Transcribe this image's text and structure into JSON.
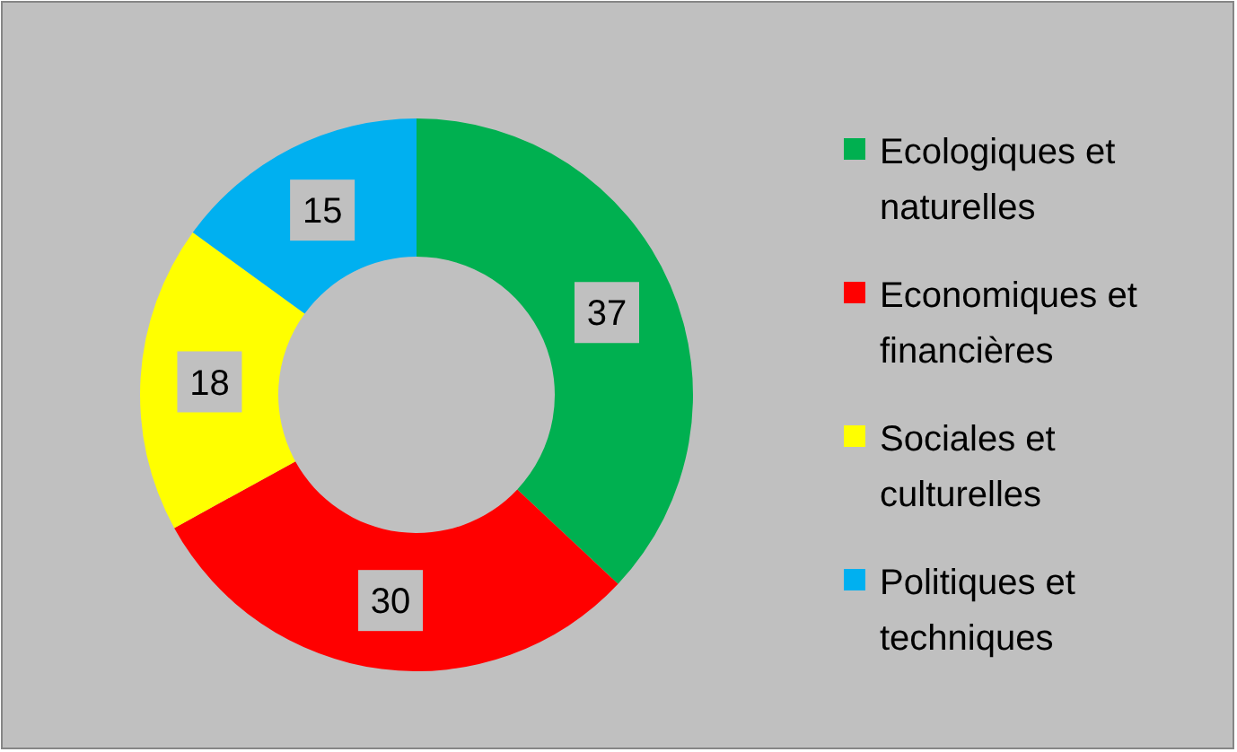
{
  "chart_data": {
    "type": "donut",
    "categories": [
      "Ecologiques et naturelles",
      "Economiques et financières",
      "Sociales et culturelles",
      "Politiques et techniques"
    ],
    "values": [
      37,
      30,
      18,
      15
    ],
    "colors": [
      "#00b050",
      "#ff0000",
      "#ffff00",
      "#00b0f0"
    ],
    "data_labels": true,
    "legend": "right"
  }
}
